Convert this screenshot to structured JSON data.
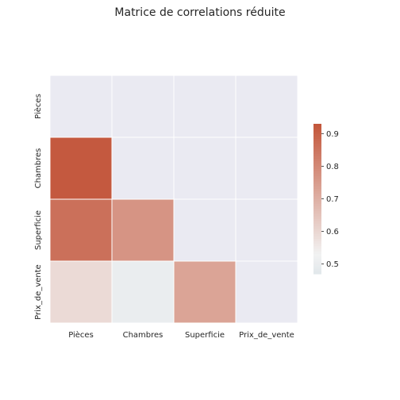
{
  "chart_data": {
    "type": "heatmap",
    "title": "Matrice de correlations réduite",
    "variables": [
      "Pièces",
      "Chambres",
      "Superficie",
      "Prix_de_vente"
    ],
    "mask": "upper-triangle-including-diagonal",
    "matrix": [
      [
        null,
        null,
        null,
        null
      ],
      [
        0.92,
        null,
        null,
        null
      ],
      [
        0.86,
        0.77,
        null,
        null
      ],
      [
        0.59,
        0.5,
        0.73,
        null
      ]
    ],
    "colorbar": {
      "min": 0.47,
      "max": 0.93,
      "ticks": [
        "0.5",
        "0.6",
        "0.7",
        "0.8",
        "0.9"
      ],
      "palette": "diverging blue-white-red",
      "low_color": "#e1e7eb",
      "mid_color": "#f2f2f2",
      "high_color": "#c3553a"
    },
    "mask_color": "#eaeaf2",
    "grid": true
  }
}
